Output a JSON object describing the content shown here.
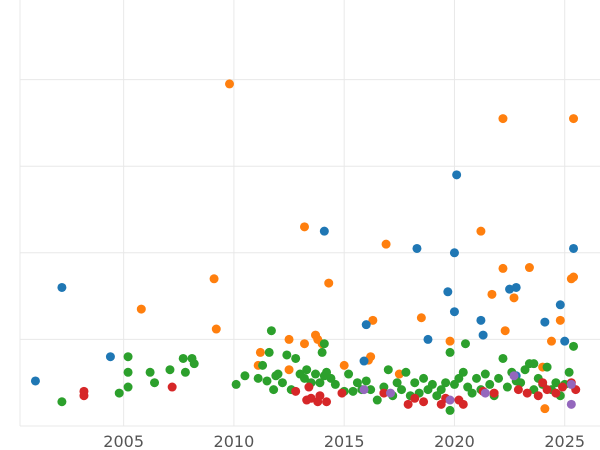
{
  "chart_data": {
    "type": "scatter",
    "title": "",
    "xlabel": "",
    "ylabel": "",
    "xlim": [
      2000.3,
      2026.6
    ],
    "ylim": [
      0,
      5
    ],
    "grid": true,
    "legend": "none",
    "x_ticks": [
      {
        "value": 2005,
        "label": "2005"
      },
      {
        "value": 2010,
        "label": "2010"
      },
      {
        "value": 2015,
        "label": "2015"
      },
      {
        "value": 2020,
        "label": "2020"
      },
      {
        "value": 2025,
        "label": "2025"
      }
    ],
    "y_gridlines": [
      0,
      1,
      2,
      3,
      4,
      5
    ],
    "series": [
      {
        "color": "#ff7f0e",
        "x": [
          2009.8,
          2022.2,
          2025.4,
          2013.2,
          2021.2,
          2016.9,
          2009.1,
          2014.3,
          2005.8,
          2009.2,
          2022.2,
          2023.4,
          2025.3,
          2025.4,
          2021.7,
          2022.7,
          2016.3,
          2018.5,
          2024.8,
          2013.7,
          2012.5,
          2013.2,
          2013.8,
          2014.0,
          2016.2,
          2019.8,
          2024.4,
          2022.3,
          2011.2,
          2011.1,
          2012.5,
          2016.1,
          2015.0,
          2017.5,
          2024.0,
          2024.1
        ],
        "y": [
          3.95,
          3.55,
          3.55,
          2.3,
          2.25,
          2.1,
          1.7,
          1.65,
          1.35,
          1.12,
          1.82,
          1.83,
          1.7,
          1.72,
          1.52,
          1.48,
          1.22,
          1.25,
          1.22,
          1.05,
          1.0,
          0.95,
          1.0,
          0.95,
          0.8,
          0.98,
          0.98,
          1.1,
          0.85,
          0.7,
          0.65,
          0.76,
          0.7,
          0.6,
          0.68,
          0.2
        ]
      },
      {
        "color": "#1f77b4",
        "x": [
          2002.2,
          2014.1,
          2020.1,
          2018.3,
          2020.0,
          2019.7,
          2020.0,
          2016.0,
          2021.2,
          2022.5,
          2022.8,
          2024.8,
          2025.4,
          2004.4,
          2001.0,
          2018.8,
          2021.3,
          2024.1,
          2025.0,
          2015.9,
          2022.8
        ],
        "y": [
          1.6,
          2.25,
          2.9,
          2.05,
          2.0,
          1.55,
          1.32,
          1.17,
          1.22,
          1.58,
          1.6,
          1.4,
          2.05,
          0.8,
          0.52,
          1.0,
          1.05,
          1.2,
          0.98,
          0.75,
          0.58
        ]
      },
      {
        "color": "#2ca02c",
        "x": [
          2002.2,
          2004.8,
          2005.2,
          2005.2,
          2005.2,
          2006.2,
          2006.4,
          2007.1,
          2007.7,
          2007.8,
          2008.1,
          2008.2,
          2010.1,
          2010.5,
          2011.1,
          2011.3,
          2011.5,
          2011.6,
          2011.8,
          2011.9,
          2012.0,
          2012.2,
          2012.4,
          2012.6,
          2012.8,
          2013.0,
          2013.2,
          2013.3,
          2013.5,
          2013.7,
          2013.9,
          2014.0,
          2014.1,
          2014.2,
          2014.4,
          2014.6,
          2015.0,
          2015.2,
          2015.4,
          2015.6,
          2015.8,
          2016.0,
          2016.2,
          2016.5,
          2016.8,
          2017.0,
          2017.2,
          2017.4,
          2017.6,
          2017.8,
          2018.0,
          2018.2,
          2018.4,
          2018.6,
          2018.8,
          2019.0,
          2019.2,
          2019.4,
          2019.6,
          2019.8,
          2020.0,
          2020.2,
          2020.4,
          2020.6,
          2020.8,
          2021.0,
          2021.2,
          2021.4,
          2021.6,
          2021.8,
          2022.0,
          2022.2,
          2022.4,
          2022.6,
          2022.8,
          2023.0,
          2023.2,
          2023.4,
          2023.6,
          2023.8,
          2024.0,
          2024.2,
          2024.4,
          2024.6,
          2024.8,
          2025.0,
          2025.2,
          2025.4,
          2014.1,
          2019.8,
          2020.5,
          2023.6,
          2011.7
        ],
        "y": [
          0.28,
          0.38,
          0.8,
          0.62,
          0.45,
          0.62,
          0.5,
          0.65,
          0.78,
          0.62,
          0.78,
          0.72,
          0.48,
          0.58,
          0.55,
          0.7,
          0.52,
          0.85,
          0.42,
          0.58,
          0.6,
          0.5,
          0.82,
          0.42,
          0.78,
          0.6,
          0.55,
          0.65,
          0.5,
          0.6,
          0.5,
          0.85,
          0.58,
          0.62,
          0.55,
          0.48,
          0.4,
          0.6,
          0.4,
          0.5,
          0.42,
          0.52,
          0.42,
          0.3,
          0.45,
          0.65,
          0.35,
          0.5,
          0.42,
          0.62,
          0.35,
          0.5,
          0.38,
          0.55,
          0.42,
          0.48,
          0.35,
          0.42,
          0.5,
          0.85,
          0.48,
          0.55,
          0.62,
          0.45,
          0.38,
          0.55,
          0.42,
          0.6,
          0.48,
          0.35,
          0.55,
          0.78,
          0.45,
          0.62,
          0.52,
          0.5,
          0.65,
          0.72,
          0.42,
          0.55,
          0.48,
          0.68,
          0.42,
          0.5,
          0.35,
          0.48,
          0.62,
          0.92,
          0.95,
          0.18,
          0.95,
          0.72,
          1.1
        ]
      },
      {
        "color": "#d62728",
        "x": [
          2003.2,
          2003.2,
          2007.2,
          2012.8,
          2013.3,
          2013.5,
          2013.8,
          2014.2,
          2014.9,
          2016.8,
          2017.9,
          2018.2,
          2018.6,
          2019.4,
          2019.6,
          2020.2,
          2020.4,
          2021.3,
          2021.8,
          2022.9,
          2023.3,
          2023.8,
          2024.0,
          2024.2,
          2024.6,
          2024.9,
          2025.3,
          2025.5,
          2013.4,
          2013.9
        ],
        "y": [
          0.35,
          0.4,
          0.45,
          0.4,
          0.3,
          0.32,
          0.28,
          0.28,
          0.38,
          0.38,
          0.25,
          0.32,
          0.28,
          0.25,
          0.32,
          0.3,
          0.25,
          0.4,
          0.38,
          0.42,
          0.38,
          0.35,
          0.5,
          0.42,
          0.38,
          0.45,
          0.5,
          0.42,
          0.45,
          0.35
        ]
      },
      {
        "color": "#9467bd",
        "x": [
          2015.9,
          2017.1,
          2019.8,
          2021.4,
          2022.7,
          2025.3,
          2025.3
        ],
        "y": [
          0.42,
          0.38,
          0.3,
          0.38,
          0.58,
          0.25,
          0.48
        ]
      }
    ]
  }
}
